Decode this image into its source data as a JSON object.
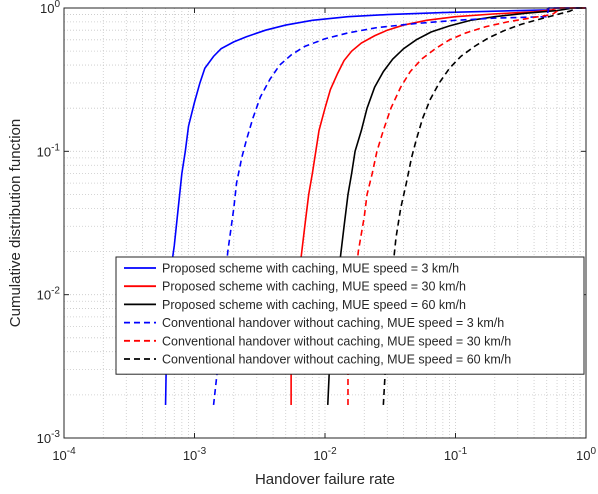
{
  "chart_data": {
    "type": "line",
    "title": "",
    "xlabel": "Handover failure rate",
    "ylabel": "Cumulative distribution function",
    "xscale": "log",
    "yscale": "log",
    "xlim": [
      0.0001,
      1
    ],
    "ylim": [
      0.001,
      1
    ],
    "grid": true,
    "legend_position": "lower-right",
    "x_ticks": [
      {
        "base": "10",
        "exp": "-4",
        "value": 0.0001
      },
      {
        "base": "10",
        "exp": "-3",
        "value": 0.001
      },
      {
        "base": "10",
        "exp": "-2",
        "value": 0.01
      },
      {
        "base": "10",
        "exp": "-1",
        "value": 0.1
      },
      {
        "base": "10",
        "exp": "0",
        "value": 1
      }
    ],
    "y_ticks": [
      {
        "base": "10",
        "exp": "-3",
        "value": 0.001
      },
      {
        "base": "10",
        "exp": "-2",
        "value": 0.01
      },
      {
        "base": "10",
        "exp": "-1",
        "value": 0.1
      },
      {
        "base": "10",
        "exp": "0",
        "value": 1
      }
    ],
    "series": [
      {
        "name": "Proposed scheme with caching, MUE speed = 3 km/h",
        "color": "#0000ff",
        "dash": "solid",
        "points": [
          [
            0.0006,
            0.0017
          ],
          [
            0.00061,
            0.004
          ],
          [
            0.00062,
            0.007
          ],
          [
            0.00066,
            0.015
          ],
          [
            0.0007,
            0.022
          ],
          [
            0.00075,
            0.04
          ],
          [
            0.0008,
            0.07
          ],
          [
            0.00085,
            0.1
          ],
          [
            0.0009,
            0.15
          ],
          [
            0.001,
            0.22
          ],
          [
            0.0011,
            0.3
          ],
          [
            0.0012,
            0.38
          ],
          [
            0.0014,
            0.46
          ],
          [
            0.0016,
            0.52
          ],
          [
            0.002,
            0.58
          ],
          [
            0.0025,
            0.63
          ],
          [
            0.0035,
            0.7
          ],
          [
            0.005,
            0.76
          ],
          [
            0.008,
            0.82
          ],
          [
            0.015,
            0.87
          ],
          [
            0.03,
            0.9
          ],
          [
            0.08,
            0.93
          ],
          [
            0.2,
            0.95
          ],
          [
            0.5,
            0.97
          ],
          [
            0.52,
            1
          ],
          [
            1,
            1
          ]
        ]
      },
      {
        "name": "Proposed scheme with caching, MUE speed = 30 km/h",
        "color": "#ff0000",
        "dash": "solid",
        "points": [
          [
            0.0055,
            0.0017
          ],
          [
            0.0055,
            0.004
          ],
          [
            0.0057,
            0.006
          ],
          [
            0.006,
            0.01
          ],
          [
            0.0065,
            0.017
          ],
          [
            0.007,
            0.03
          ],
          [
            0.0075,
            0.05
          ],
          [
            0.008,
            0.07
          ],
          [
            0.0085,
            0.1
          ],
          [
            0.009,
            0.14
          ],
          [
            0.01,
            0.2
          ],
          [
            0.011,
            0.27
          ],
          [
            0.0125,
            0.35
          ],
          [
            0.014,
            0.43
          ],
          [
            0.016,
            0.5
          ],
          [
            0.019,
            0.57
          ],
          [
            0.024,
            0.64
          ],
          [
            0.03,
            0.7
          ],
          [
            0.04,
            0.76
          ],
          [
            0.06,
            0.82
          ],
          [
            0.1,
            0.87
          ],
          [
            0.2,
            0.91
          ],
          [
            0.4,
            0.94
          ],
          [
            0.55,
            0.97
          ],
          [
            0.6,
            1
          ],
          [
            1,
            1
          ]
        ]
      },
      {
        "name": "Proposed scheme with caching, MUE speed = 60 km/h",
        "color": "#000000",
        "dash": "solid",
        "points": [
          [
            0.0105,
            0.0017
          ],
          [
            0.0108,
            0.003
          ],
          [
            0.0112,
            0.005
          ],
          [
            0.012,
            0.01
          ],
          [
            0.013,
            0.017
          ],
          [
            0.014,
            0.03
          ],
          [
            0.015,
            0.05
          ],
          [
            0.016,
            0.07
          ],
          [
            0.017,
            0.1
          ],
          [
            0.019,
            0.14
          ],
          [
            0.021,
            0.2
          ],
          [
            0.024,
            0.28
          ],
          [
            0.028,
            0.36
          ],
          [
            0.033,
            0.44
          ],
          [
            0.04,
            0.52
          ],
          [
            0.05,
            0.6
          ],
          [
            0.065,
            0.68
          ],
          [
            0.09,
            0.75
          ],
          [
            0.13,
            0.82
          ],
          [
            0.2,
            0.87
          ],
          [
            0.35,
            0.92
          ],
          [
            0.6,
            0.96
          ],
          [
            0.8,
            1
          ],
          [
            1,
            1
          ]
        ]
      },
      {
        "name": "Conventional handover without caching, MUE speed = 3 km/h",
        "color": "#0000ff",
        "dash": "dashed",
        "points": [
          [
            0.0014,
            0.0017
          ],
          [
            0.0015,
            0.003
          ],
          [
            0.0016,
            0.006
          ],
          [
            0.0017,
            0.012
          ],
          [
            0.0018,
            0.02
          ],
          [
            0.002,
            0.04
          ],
          [
            0.0021,
            0.06
          ],
          [
            0.0023,
            0.09
          ],
          [
            0.0025,
            0.12
          ],
          [
            0.0028,
            0.17
          ],
          [
            0.0032,
            0.24
          ],
          [
            0.0038,
            0.32
          ],
          [
            0.0045,
            0.4
          ],
          [
            0.0055,
            0.47
          ],
          [
            0.007,
            0.54
          ],
          [
            0.01,
            0.61
          ],
          [
            0.015,
            0.67
          ],
          [
            0.025,
            0.73
          ],
          [
            0.05,
            0.78
          ],
          [
            0.1,
            0.82
          ],
          [
            0.2,
            0.85
          ],
          [
            0.5,
            0.87
          ],
          [
            0.52,
            1
          ],
          [
            1,
            1
          ]
        ]
      },
      {
        "name": "Conventional handover without caching, MUE speed = 30 km/h",
        "color": "#ff0000",
        "dash": "dashed",
        "points": [
          [
            0.015,
            0.0017
          ],
          [
            0.015,
            0.004
          ],
          [
            0.016,
            0.007
          ],
          [
            0.017,
            0.012
          ],
          [
            0.018,
            0.02
          ],
          [
            0.02,
            0.035
          ],
          [
            0.021,
            0.05
          ],
          [
            0.023,
            0.07
          ],
          [
            0.025,
            0.1
          ],
          [
            0.028,
            0.14
          ],
          [
            0.032,
            0.2
          ],
          [
            0.038,
            0.28
          ],
          [
            0.045,
            0.36
          ],
          [
            0.055,
            0.44
          ],
          [
            0.07,
            0.52
          ],
          [
            0.09,
            0.6
          ],
          [
            0.12,
            0.67
          ],
          [
            0.17,
            0.74
          ],
          [
            0.25,
            0.8
          ],
          [
            0.4,
            0.86
          ],
          [
            0.55,
            0.9
          ],
          [
            0.6,
            0.95
          ],
          [
            0.62,
            1
          ],
          [
            1,
            1
          ]
        ]
      },
      {
        "name": "Conventional handover without caching, MUE speed = 60 km/h",
        "color": "#000000",
        "dash": "dashed",
        "points": [
          [
            0.028,
            0.0017
          ],
          [
            0.029,
            0.003
          ],
          [
            0.03,
            0.005
          ],
          [
            0.031,
            0.008
          ],
          [
            0.033,
            0.015
          ],
          [
            0.035,
            0.025
          ],
          [
            0.038,
            0.04
          ],
          [
            0.042,
            0.06
          ],
          [
            0.046,
            0.09
          ],
          [
            0.05,
            0.12
          ],
          [
            0.056,
            0.17
          ],
          [
            0.064,
            0.23
          ],
          [
            0.075,
            0.3
          ],
          [
            0.09,
            0.38
          ],
          [
            0.11,
            0.46
          ],
          [
            0.14,
            0.54
          ],
          [
            0.18,
            0.62
          ],
          [
            0.24,
            0.7
          ],
          [
            0.32,
            0.77
          ],
          [
            0.45,
            0.84
          ],
          [
            0.6,
            0.9
          ],
          [
            0.75,
            0.95
          ],
          [
            0.85,
            1
          ],
          [
            1,
            1
          ]
        ]
      }
    ]
  }
}
